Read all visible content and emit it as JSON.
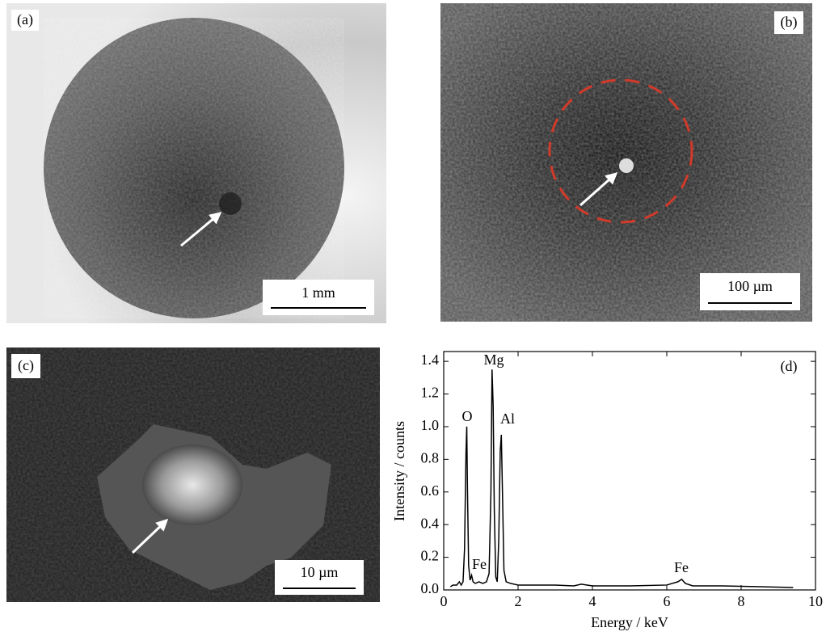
{
  "panels": [
    {
      "label": "(a)",
      "scale": "1 mm"
    },
    {
      "label": "(b)",
      "scale": "100 µm"
    },
    {
      "label": "(c)",
      "scale": "10 µm"
    }
  ],
  "chart_data": {
    "type": "line",
    "label": "(d)",
    "xlabel": "Energy / keV",
    "ylabel": "Intensity / counts",
    "x": [
      0.18,
      0.25,
      0.35,
      0.42,
      0.47,
      0.52,
      0.56,
      0.6,
      0.62,
      0.64,
      0.67,
      0.71,
      0.75,
      0.79,
      0.85,
      0.95,
      1.05,
      1.15,
      1.22,
      1.27,
      1.3,
      1.33,
      1.36,
      1.4,
      1.44,
      1.48,
      1.52,
      1.55,
      1.58,
      1.62,
      1.68,
      1.8,
      2.0,
      2.5,
      3.0,
      3.5,
      3.7,
      4.0,
      5.0,
      6.0,
      6.3,
      6.4,
      6.5,
      6.7,
      7.5,
      8.5,
      9.4
    ],
    "values": [
      0.02,
      0.03,
      0.03,
      0.05,
      0.03,
      0.05,
      0.25,
      0.85,
      1.0,
      0.6,
      0.15,
      0.06,
      0.09,
      0.05,
      0.04,
      0.05,
      0.04,
      0.05,
      0.1,
      0.6,
      1.35,
      1.13,
      0.5,
      0.08,
      0.05,
      0.3,
      0.85,
      0.95,
      0.6,
      0.12,
      0.05,
      0.04,
      0.03,
      0.03,
      0.03,
      0.025,
      0.035,
      0.025,
      0.025,
      0.03,
      0.05,
      0.065,
      0.04,
      0.025,
      0.025,
      0.02,
      0.015
    ],
    "color": "#000000",
    "annotations": [
      "O",
      "Fe",
      "Mg",
      "Al",
      "Fe"
    ],
    "xlim": [
      0,
      10
    ],
    "xticks": [
      0,
      2,
      4,
      6,
      8,
      10
    ],
    "ylim": [
      0,
      1.46
    ],
    "yticks": [
      {
        "value": 0,
        "label": "0.0"
      },
      {
        "value": 0.2,
        "label": "0.2"
      },
      {
        "value": 0.4,
        "label": "0.4"
      },
      {
        "value": 0.6,
        "label": "0.6"
      },
      {
        "value": 0.8,
        "label": "0.8"
      },
      {
        "value": 1.0,
        "label": "1.0"
      },
      {
        "value": 1.2,
        "label": "1.2"
      },
      {
        "value": 1.4,
        "label": "1.4"
      }
    ]
  }
}
